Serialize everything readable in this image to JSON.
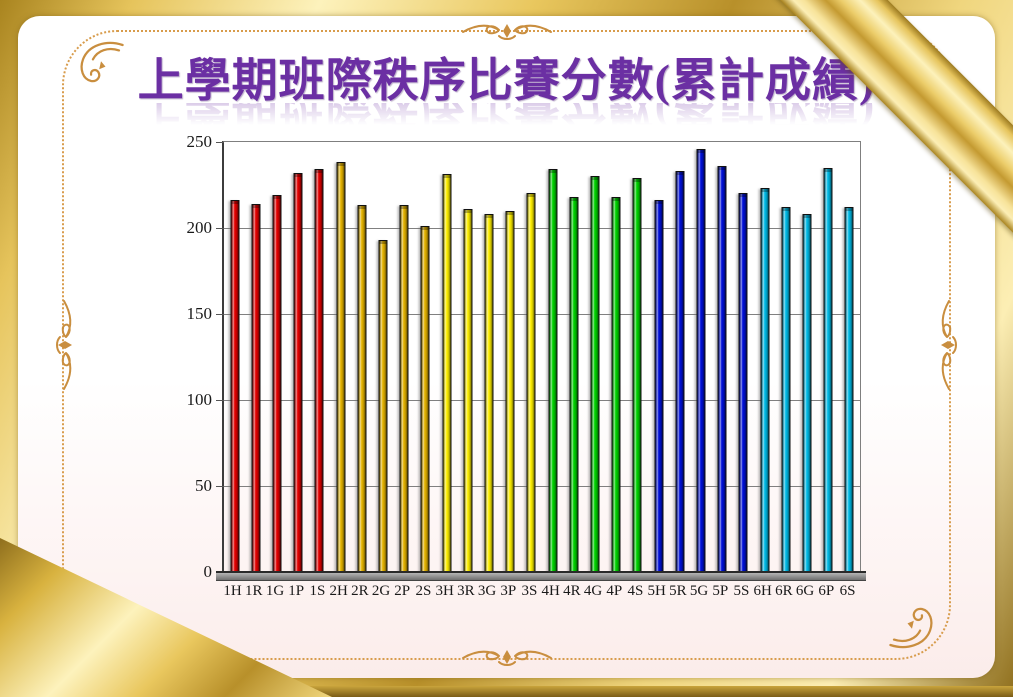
{
  "slide": {
    "title": "上學期班際秩序比賽分數(累計成績)",
    "title_color": "#6B2FA3",
    "frame_gold_color": "#D8B23F",
    "inner_border_color": "#D89C4C",
    "ornaments": [
      "corner-flourish",
      "center-scroll"
    ]
  },
  "chart_data": {
    "type": "bar",
    "title": "上學期班際秩序比賽分數(累計成績)",
    "xlabel": "",
    "ylabel": "",
    "ylim": [
      0,
      250
    ],
    "yticks": [
      0,
      50,
      100,
      150,
      200,
      250
    ],
    "grid": true,
    "legend": "none",
    "categories": [
      "1H",
      "1R",
      "1G",
      "1P",
      "1S",
      "2H",
      "2R",
      "2G",
      "2P",
      "2S",
      "3H",
      "3R",
      "3G",
      "3P",
      "3S",
      "4H",
      "4R",
      "4G",
      "4P",
      "4S",
      "5H",
      "5R",
      "5G",
      "5P",
      "5S",
      "6H",
      "6R",
      "6G",
      "6P",
      "6S"
    ],
    "values": [
      215,
      213,
      218,
      231,
      233,
      237,
      212,
      192,
      212,
      200,
      230,
      210,
      207,
      209,
      219,
      233,
      217,
      229,
      217,
      228,
      215,
      232,
      245,
      235,
      219,
      222,
      211,
      207,
      234,
      211
    ],
    "group_colors": {
      "1": "#E60000",
      "2": "#E6B400",
      "3": "#FFF000",
      "4": "#00D500",
      "5": "#0010DC",
      "6": "#00BCE8"
    },
    "bar_outline": "#111111",
    "axis_color": "#808080",
    "label_color": "#1A1A1A"
  }
}
